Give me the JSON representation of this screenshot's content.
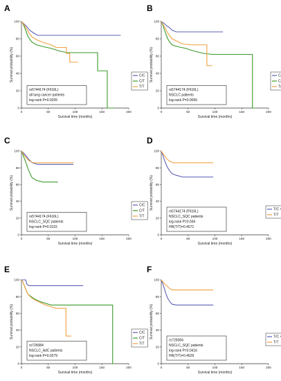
{
  "figure": {
    "colors": {
      "blue": "#5B5FB5",
      "green": "#3C9A2A",
      "orange": "#F0A040"
    }
  },
  "chart_data": [
    {
      "panel": "A",
      "type": "line",
      "xlabel": "Survival time (months)",
      "ylabel": "Survival probability (%)",
      "xlim": [
        0,
        200
      ],
      "ylim": [
        0,
        100
      ],
      "xticks": [
        "0",
        "50",
        "100",
        "150",
        "200"
      ],
      "yticks": [
        "0",
        "20",
        "40",
        "60",
        "80",
        "100"
      ],
      "annotation": [
        "rs5744174 (F616L)",
        "all lung cancer patients",
        "log-rank P=0.0205"
      ],
      "legend_position": "right",
      "series": [
        {
          "name": "C/C",
          "color": "#5B5FB5",
          "points": [
            [
              0,
              100
            ],
            [
              5,
              97
            ],
            [
              10,
              94
            ],
            [
              15,
              90
            ],
            [
              22,
              87
            ],
            [
              30,
              84
            ],
            [
              60,
              84
            ],
            [
              150,
              84
            ],
            [
              185,
              84
            ]
          ]
        },
        {
          "name": "C/T",
          "color": "#3C9A2A",
          "points": [
            [
              0,
              100
            ],
            [
              3,
              97
            ],
            [
              6,
              93
            ],
            [
              9,
              88
            ],
            [
              12,
              83
            ],
            [
              16,
              79
            ],
            [
              20,
              76
            ],
            [
              28,
              73
            ],
            [
              40,
              71
            ],
            [
              55,
              69
            ],
            [
              70,
              66
            ],
            [
              85,
              64
            ],
            [
              100,
              64
            ],
            [
              142,
              64
            ],
            [
              142,
              43
            ],
            [
              160,
              43
            ],
            [
              160,
              0
            ],
            [
              172,
              0
            ]
          ]
        },
        {
          "name": "T/T",
          "color": "#F0A040",
          "points": [
            [
              0,
              100
            ],
            [
              5,
              96
            ],
            [
              10,
              91
            ],
            [
              15,
              86
            ],
            [
              20,
              82
            ],
            [
              28,
              79
            ],
            [
              40,
              76
            ],
            [
              55,
              73
            ],
            [
              65,
              70
            ],
            [
              84,
              70
            ],
            [
              84,
              63
            ],
            [
              90,
              63
            ],
            [
              90,
              53
            ],
            [
              105,
              53
            ]
          ]
        }
      ]
    },
    {
      "panel": "B",
      "type": "line",
      "xlabel": "Survival time (months)",
      "ylabel": "Survival probability (%)",
      "xlim": [
        0,
        200
      ],
      "ylim": [
        0,
        100
      ],
      "xticks": [
        "0",
        "50",
        "100",
        "150",
        "200"
      ],
      "yticks": [
        "0",
        "20",
        "40",
        "60",
        "80",
        "100"
      ],
      "annotation": [
        "rs5744174 (F616L)",
        "NSCLC patients",
        "log-rank P=0.0056"
      ],
      "legend_position": "right",
      "series": [
        {
          "name": "C/C",
          "color": "#5B5FB5",
          "points": [
            [
              0,
              100
            ],
            [
              5,
              98
            ],
            [
              10,
              95
            ],
            [
              15,
              93
            ],
            [
              20,
              90
            ],
            [
              28,
              88
            ],
            [
              115,
              88
            ]
          ]
        },
        {
          "name": "C/T",
          "color": "#3C9A2A",
          "points": [
            [
              0,
              100
            ],
            [
              3,
              96
            ],
            [
              6,
              90
            ],
            [
              9,
              85
            ],
            [
              12,
              80
            ],
            [
              16,
              76
            ],
            [
              20,
              73
            ],
            [
              30,
              71
            ],
            [
              45,
              69
            ],
            [
              60,
              66
            ],
            [
              80,
              63
            ],
            [
              95,
              62
            ],
            [
              170,
              62
            ],
            [
              170,
              0
            ],
            [
              175,
              0
            ]
          ]
        },
        {
          "name": "T/T",
          "color": "#F0A040",
          "points": [
            [
              0,
              100
            ],
            [
              5,
              95
            ],
            [
              10,
              89
            ],
            [
              15,
              84
            ],
            [
              20,
              80
            ],
            [
              30,
              77
            ],
            [
              40,
              74
            ],
            [
              55,
              73
            ],
            [
              85,
              73
            ],
            [
              85,
              49
            ],
            [
              95,
              49
            ]
          ]
        }
      ]
    },
    {
      "panel": "C",
      "type": "line",
      "xlabel": "Survival time (months)",
      "ylabel": "Survival probability (%)",
      "xlim": [
        0,
        200
      ],
      "ylim": [
        0,
        100
      ],
      "xticks": [
        "0",
        "50",
        "100",
        "150",
        "200"
      ],
      "yticks": [
        "0",
        "20",
        "40",
        "60",
        "80",
        "100"
      ],
      "annotation": [
        "rs5744174 (F616L)",
        "NSCLC_SQC patients",
        "log-rank P=0.0115"
      ],
      "legend_position": "right",
      "series": [
        {
          "name": "C/C",
          "color": "#5B5FB5",
          "points": [
            [
              0,
              100
            ],
            [
              5,
              97
            ],
            [
              10,
              93
            ],
            [
              15,
              89
            ],
            [
              20,
              86
            ],
            [
              30,
              84
            ],
            [
              97,
              84
            ]
          ]
        },
        {
          "name": "C/T",
          "color": "#3C9A2A",
          "points": [
            [
              0,
              100
            ],
            [
              3,
              95
            ],
            [
              6,
              90
            ],
            [
              9,
              85
            ],
            [
              12,
              79
            ],
            [
              16,
              73
            ],
            [
              20,
              68
            ],
            [
              28,
              65
            ],
            [
              40,
              63
            ],
            [
              68,
              63
            ]
          ]
        },
        {
          "name": "T/T",
          "color": "#F0A040",
          "points": [
            [
              0,
              100
            ],
            [
              5,
              95
            ],
            [
              10,
              91
            ],
            [
              15,
              88
            ],
            [
              22,
              86
            ],
            [
              97,
              86
            ]
          ]
        }
      ]
    },
    {
      "panel": "D",
      "type": "line",
      "xlabel": "Survival time (months)",
      "ylabel": "Survival probability (%)",
      "xlim": [
        0,
        200
      ],
      "ylim": [
        0,
        100
      ],
      "xticks": [
        "0",
        "50",
        "100",
        "150",
        "200"
      ],
      "yticks": [
        "0",
        "20",
        "40",
        "60",
        "80",
        "100"
      ],
      "annotation": [
        "rs5744174 (F616L)",
        "NSCLC_SQC patients",
        "log-rank P=0.036",
        "HR(T/T)=0.4571"
      ],
      "legend_position": "right",
      "series": [
        {
          "name": "T/C + C/C",
          "color": "#5B5FB5",
          "points": [
            [
              0,
              100
            ],
            [
              3,
              95
            ],
            [
              6,
              89
            ],
            [
              9,
              84
            ],
            [
              12,
              80
            ],
            [
              16,
              76
            ],
            [
              20,
              73
            ],
            [
              28,
              71
            ],
            [
              40,
              69
            ],
            [
              97,
              69
            ]
          ]
        },
        {
          "name": "T/T",
          "color": "#F0A040",
          "points": [
            [
              0,
              100
            ],
            [
              5,
              95
            ],
            [
              10,
              91
            ],
            [
              15,
              88
            ],
            [
              22,
              86
            ],
            [
              97,
              86
            ]
          ]
        }
      ]
    },
    {
      "panel": "E",
      "type": "line",
      "xlabel": "Survival time (months)",
      "ylabel": "Survival probability (%)",
      "xlim": [
        0,
        200
      ],
      "ylim": [
        0,
        100
      ],
      "xticks": [
        "0",
        "50",
        "100",
        "150",
        "200"
      ],
      "yticks": [
        "0",
        "20",
        "40",
        "60",
        "80",
        "100"
      ],
      "annotation": [
        "rs725084",
        "NSCLC_AdC patients",
        "log-rank P=0.0279"
      ],
      "legend_position": "right",
      "series": [
        {
          "name": "C/C",
          "color": "#5B5FB5",
          "points": [
            [
              0,
              100
            ],
            [
              8,
              100
            ],
            [
              10,
              95
            ],
            [
              14,
              93
            ],
            [
              115,
              93
            ]
          ]
        },
        {
          "name": "C/T",
          "color": "#3C9A2A",
          "points": [
            [
              0,
              100
            ],
            [
              3,
              97
            ],
            [
              6,
              92
            ],
            [
              9,
              87
            ],
            [
              12,
              83
            ],
            [
              18,
              80
            ],
            [
              25,
              77
            ],
            [
              35,
              74
            ],
            [
              45,
              72
            ],
            [
              55,
              70
            ],
            [
              170,
              70
            ],
            [
              170,
              0
            ],
            [
              173,
              0
            ]
          ]
        },
        {
          "name": "T/T",
          "color": "#F0A040",
          "points": [
            [
              0,
              100
            ],
            [
              3,
              97
            ],
            [
              6,
              92
            ],
            [
              9,
              87
            ],
            [
              12,
              83
            ],
            [
              18,
              79
            ],
            [
              25,
              76
            ],
            [
              35,
              73
            ],
            [
              45,
              70
            ],
            [
              55,
              68
            ],
            [
              65,
              66
            ],
            [
              83,
              66
            ],
            [
              83,
              33
            ],
            [
              93,
              33
            ]
          ]
        }
      ]
    },
    {
      "panel": "F",
      "type": "line",
      "xlabel": "Survival time (months)",
      "ylabel": "Survival probability (%)",
      "xlim": [
        0,
        200
      ],
      "ylim": [
        0,
        100
      ],
      "xticks": [
        "0",
        "50",
        "100",
        "150",
        "200"
      ],
      "yticks": [
        "0",
        "20",
        "40",
        "60",
        "80",
        "100"
      ],
      "annotation": [
        "rs725084",
        "NSCLC_SQC patients",
        "log-rank P=0.0416",
        "HR(T/T)=0.4529"
      ],
      "legend_position": "right",
      "series": [
        {
          "name": "T/C + C/C",
          "color": "#5B5FB5",
          "points": [
            [
              0,
              100
            ],
            [
              3,
              95
            ],
            [
              6,
              89
            ],
            [
              9,
              83
            ],
            [
              12,
              78
            ],
            [
              16,
              74
            ],
            [
              20,
              71
            ],
            [
              28,
              70
            ],
            [
              97,
              70
            ]
          ]
        },
        {
          "name": "T/T",
          "color": "#F0A040",
          "points": [
            [
              0,
              100
            ],
            [
              5,
              96
            ],
            [
              10,
              93
            ],
            [
              15,
              90
            ],
            [
              20,
              88
            ],
            [
              97,
              88
            ]
          ]
        }
      ]
    }
  ]
}
